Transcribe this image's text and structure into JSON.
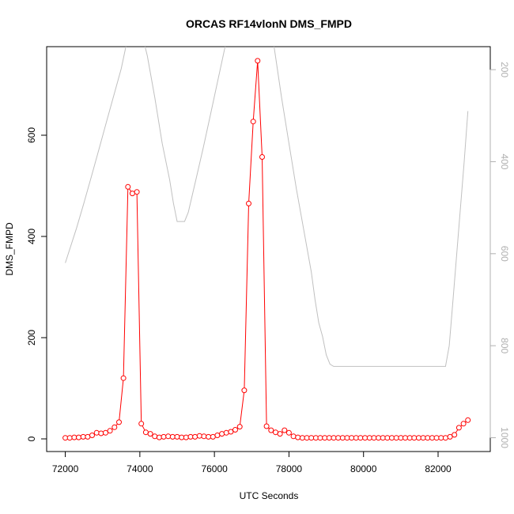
{
  "chart_data": {
    "type": "line",
    "title": "ORCAS RF14vlonN DMS_FMPD",
    "xlabel": "UTC Seconds",
    "ylabel": "DMS_FMPD",
    "xlim": [
      71500,
      83400
    ],
    "ylim": [
      -25,
      775
    ],
    "x_ticks": [
      72000,
      74000,
      76000,
      78000,
      80000,
      82000
    ],
    "y_ticks": [
      0,
      200,
      400,
      600
    ],
    "y2_label": "",
    "y2_ticks": [
      200,
      400,
      600,
      800,
      1000
    ],
    "y2_lim_top_to_bottom": [
      150,
      1030
    ],
    "grid": false,
    "legend": "none",
    "colors": {
      "series": "#ff0000",
      "secondary": "#c0c0c0",
      "axis": "#000000",
      "secondary_axis": "#b0b0b0"
    },
    "series": [
      {
        "values_x": [
          72000,
          72120,
          72240,
          72360,
          72480,
          72600,
          72720,
          72840,
          72960,
          73080,
          73200,
          73320,
          73440,
          73560,
          73680,
          73800,
          73920,
          74040,
          74160,
          74280,
          74400,
          74520,
          74640,
          74760,
          74880,
          75000,
          75120,
          75240,
          75360,
          75480,
          75600,
          75720,
          75840,
          75960,
          76080,
          76200,
          76320,
          76440,
          76560,
          76680,
          76800,
          76920,
          77040,
          77160,
          77280,
          77400,
          77520,
          77640,
          77760,
          77880,
          78000,
          78120,
          78240,
          78360,
          78480,
          78600,
          78720,
          78840,
          78960,
          79080,
          79200,
          79320,
          79440,
          79560,
          79680,
          79800,
          79920,
          80040,
          80160,
          80280,
          80400,
          80520,
          80640,
          80760,
          80880,
          81000,
          81120,
          81240,
          81360,
          81480,
          81600,
          81720,
          81840,
          81960,
          82080,
          82200,
          82320,
          82440,
          82560,
          82680,
          82800
        ],
        "values_y": [
          2,
          2,
          3,
          3,
          4,
          4,
          7,
          12,
          11,
          12,
          16,
          23,
          33,
          120,
          498,
          485,
          488,
          30,
          13,
          10,
          5,
          3,
          4,
          5,
          4,
          4,
          3,
          3,
          4,
          4,
          6,
          5,
          4,
          4,
          7,
          10,
          12,
          14,
          18,
          24,
          96,
          465,
          627,
          747,
          557,
          25,
          17,
          13,
          10,
          17,
          12,
          5,
          3,
          2,
          2,
          2,
          2,
          2,
          2,
          2,
          2,
          2,
          2,
          2,
          2,
          2,
          2,
          2,
          2,
          2,
          2,
          2,
          2,
          2,
          2,
          2,
          2,
          2,
          2,
          2,
          2,
          2,
          2,
          2,
          2,
          2,
          4,
          8,
          22,
          30,
          37
        ]
      },
      {
        "axis": "right",
        "values_x": [
          72000,
          72100,
          72300,
          72500,
          72700,
          72900,
          73100,
          73300,
          73500,
          73650,
          73700,
          73800,
          74050,
          74200,
          74400,
          74600,
          74800,
          74900,
          75000,
          75200,
          75300,
          75500,
          75700,
          75900,
          76100,
          76300,
          76500,
          76700,
          76900,
          77000,
          77050,
          77500,
          77600,
          77800,
          78000,
          78200,
          78400,
          78600,
          78700,
          78800,
          78900,
          79000,
          79100,
          79200,
          79500,
          80000,
          81000,
          82000,
          82200,
          82300,
          82400,
          82500,
          82600,
          82700,
          82800
        ],
        "values_y": [
          620,
          595,
          545,
          490,
          432,
          374,
          315,
          256,
          198,
          140,
          120,
          120,
          120,
          170,
          260,
          360,
          440,
          490,
          530,
          530,
          510,
          440,
          370,
          296,
          220,
          145,
          120,
          120,
          120,
          120,
          120,
          120,
          150,
          260,
          360,
          460,
          550,
          640,
          700,
          750,
          780,
          820,
          840,
          845,
          845,
          845,
          845,
          845,
          845,
          800,
          700,
          600,
          500,
          400,
          290
        ]
      }
    ]
  }
}
